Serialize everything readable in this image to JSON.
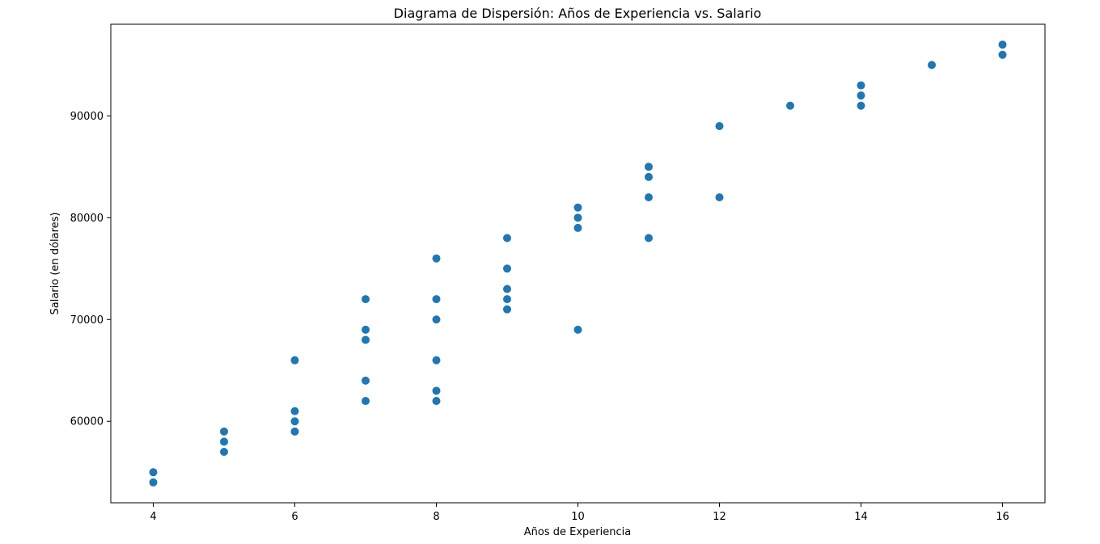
{
  "chart_data": {
    "type": "scatter",
    "title": "Diagrama de Dispersión: Años de Experiencia vs. Salario",
    "xlabel": "Años de Experiencia",
    "ylabel": "Salario (en dólares)",
    "xlim": [
      3.4,
      16.6
    ],
    "ylim": [
      52000,
      99000
    ],
    "xticks": [
      4,
      6,
      8,
      10,
      12,
      14,
      16
    ],
    "yticks": [
      60000,
      70000,
      80000,
      90000
    ],
    "grid": false,
    "marker_color": "#1f77b4",
    "points": [
      {
        "x": 4,
        "y": 55000
      },
      {
        "x": 4,
        "y": 54000
      },
      {
        "x": 5,
        "y": 59000
      },
      {
        "x": 5,
        "y": 58000
      },
      {
        "x": 5,
        "y": 57000
      },
      {
        "x": 6,
        "y": 66000
      },
      {
        "x": 6,
        "y": 61000
      },
      {
        "x": 6,
        "y": 60000
      },
      {
        "x": 6,
        "y": 59000
      },
      {
        "x": 7,
        "y": 72000
      },
      {
        "x": 7,
        "y": 69000
      },
      {
        "x": 7,
        "y": 68000
      },
      {
        "x": 7,
        "y": 64000
      },
      {
        "x": 7,
        "y": 62000
      },
      {
        "x": 8,
        "y": 76000
      },
      {
        "x": 8,
        "y": 72000
      },
      {
        "x": 8,
        "y": 70000
      },
      {
        "x": 8,
        "y": 66000
      },
      {
        "x": 8,
        "y": 63000
      },
      {
        "x": 8,
        "y": 62000
      },
      {
        "x": 9,
        "y": 78000
      },
      {
        "x": 9,
        "y": 75000
      },
      {
        "x": 9,
        "y": 73000
      },
      {
        "x": 9,
        "y": 72000
      },
      {
        "x": 9,
        "y": 71000
      },
      {
        "x": 10,
        "y": 81000
      },
      {
        "x": 10,
        "y": 80000
      },
      {
        "x": 10,
        "y": 79000
      },
      {
        "x": 10,
        "y": 69000
      },
      {
        "x": 11,
        "y": 85000
      },
      {
        "x": 11,
        "y": 84000
      },
      {
        "x": 11,
        "y": 82000
      },
      {
        "x": 11,
        "y": 78000
      },
      {
        "x": 12,
        "y": 89000
      },
      {
        "x": 12,
        "y": 82000
      },
      {
        "x": 13,
        "y": 91000
      },
      {
        "x": 14,
        "y": 93000
      },
      {
        "x": 14,
        "y": 92000
      },
      {
        "x": 14,
        "y": 91000
      },
      {
        "x": 15,
        "y": 95000
      },
      {
        "x": 16,
        "y": 97000
      },
      {
        "x": 16,
        "y": 96000
      }
    ]
  }
}
